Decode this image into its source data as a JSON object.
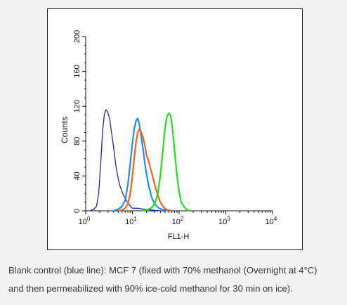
{
  "chart_data": {
    "type": "line",
    "xlabel": "FL1-H",
    "ylabel": "Counts",
    "x_scale": "log",
    "xlim": [
      1,
      10000
    ],
    "ylim": [
      0,
      200
    ],
    "x_ticks": [
      {
        "value": 1,
        "base": "10",
        "exp": "0"
      },
      {
        "value": 10,
        "base": "10",
        "exp": "1"
      },
      {
        "value": 100,
        "base": "10",
        "exp": "2"
      },
      {
        "value": 1000,
        "base": "10",
        "exp": "3"
      },
      {
        "value": 10000,
        "base": "10",
        "exp": "4"
      }
    ],
    "y_ticks": [
      {
        "value": 0,
        "label": "0"
      },
      {
        "value": 40,
        "label": "40"
      },
      {
        "value": 80,
        "label": "80"
      },
      {
        "value": 120,
        "label": "120"
      },
      {
        "value": 160,
        "label": "160"
      },
      {
        "value": 200,
        "label": "200"
      }
    ],
    "grid": false,
    "series": [
      {
        "color": "#2323b4",
        "x": [
          1.25,
          1.5,
          1.7,
          1.9,
          2.1,
          2.3,
          2.5,
          2.7,
          2.9,
          3.1,
          3.3,
          3.5,
          3.8,
          4.1,
          4.4,
          4.8,
          5.3,
          6.0,
          7.0,
          8.5,
          10,
          13,
          17,
          25,
          40,
          70
        ],
        "y": [
          0,
          2,
          5,
          20,
          55,
          92,
          110,
          116,
          114,
          110,
          104,
          93,
          80,
          66,
          53,
          41,
          30,
          22,
          14,
          7,
          3,
          3,
          2,
          1,
          0,
          0
        ]
      },
      {
        "color": "#1e8ef0",
        "x": [
          4,
          5,
          6,
          7,
          8,
          9,
          10,
          11,
          12,
          13,
          14,
          15,
          17,
          19,
          22,
          26,
          30,
          35,
          40,
          50,
          60,
          80
        ],
        "y": [
          0,
          2,
          5,
          12,
          30,
          55,
          78,
          95,
          104,
          106,
          100,
          90,
          70,
          50,
          30,
          15,
          8,
          4,
          2,
          1,
          0,
          0
        ]
      },
      {
        "color": "#f26419",
        "x": [
          5,
          6,
          7,
          8,
          9,
          10,
          11,
          12,
          13,
          14,
          15,
          16,
          17,
          18,
          19,
          20,
          22,
          24,
          27,
          30,
          34,
          38,
          45,
          55,
          70
        ],
        "y": [
          0,
          1,
          3,
          8,
          20,
          40,
          62,
          80,
          90,
          94,
          92,
          88,
          84,
          78,
          72,
          64,
          58,
          50,
          40,
          30,
          20,
          12,
          5,
          1,
          0
        ]
      },
      {
        "color": "#22dd22",
        "x": [
          15,
          20,
          25,
          30,
          35,
          40,
          45,
          50,
          55,
          60,
          65,
          70,
          75,
          80,
          90,
          100,
          110,
          130,
          150,
          170
        ],
        "y": [
          0,
          1,
          3,
          8,
          20,
          42,
          70,
          95,
          108,
          112,
          110,
          100,
          85,
          68,
          40,
          22,
          10,
          4,
          1,
          0
        ]
      }
    ]
  },
  "caption": {
    "line1": "Blank control (blue line): MCF 7 (fixed with 70% methanol (Overnight at 4°C)",
    "line2": "and then permeabilized with 90% ice-cold methanol for 30 min on ice)."
  }
}
